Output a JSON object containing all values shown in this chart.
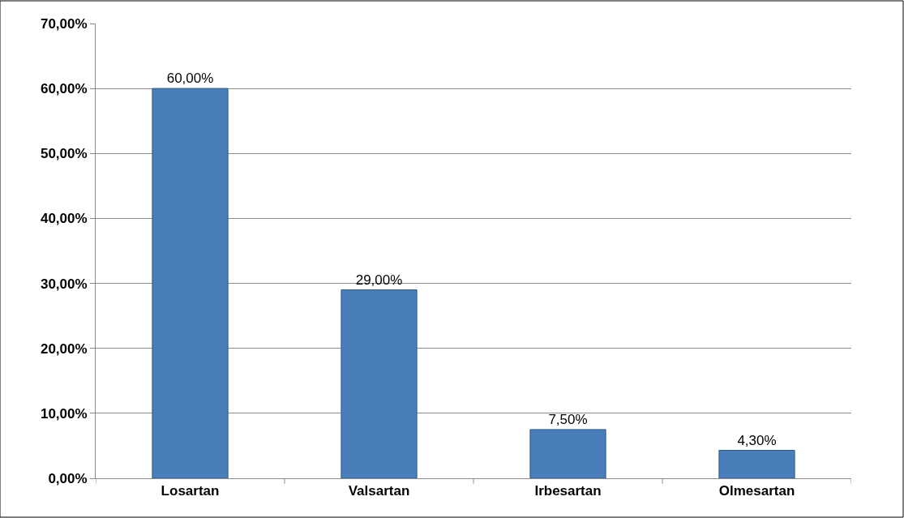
{
  "chart_data": {
    "type": "bar",
    "categories": [
      "Losartan",
      "Valsartan",
      "Irbesartan",
      "Olmesartan"
    ],
    "values": [
      60,
      29,
      7.5,
      4.3
    ],
    "value_labels": [
      "60,00%",
      "29,00%",
      "7,50%",
      "4,30%"
    ],
    "color": "#4a7ebb",
    "ylim": [
      0,
      70
    ],
    "yticks": [
      {
        "value": 0,
        "label": "0,00%"
      },
      {
        "value": 10,
        "label": "10,00%"
      },
      {
        "value": 20,
        "label": "20,00%"
      },
      {
        "value": 30,
        "label": "30,00%"
      },
      {
        "value": 40,
        "label": "40,00%"
      },
      {
        "value": 50,
        "label": "50,00%"
      },
      {
        "value": 60,
        "label": "60,00%"
      },
      {
        "value": 70,
        "label": "70,00%"
      }
    ],
    "grid": "y"
  }
}
